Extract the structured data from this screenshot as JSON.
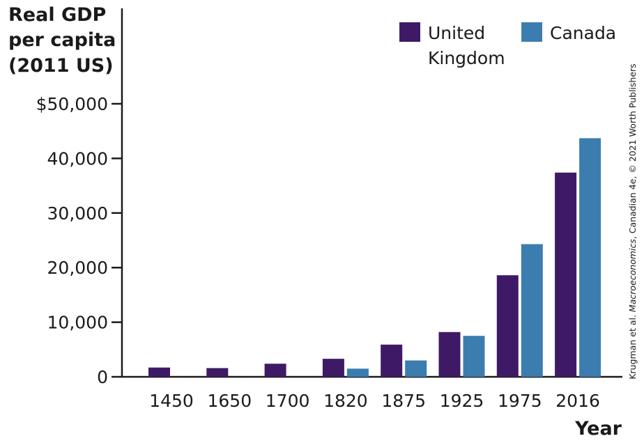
{
  "chart_data": {
    "type": "bar",
    "ylabel": [
      "Real GDP",
      "per capita",
      "(2011 US)"
    ],
    "xlabel": "Year",
    "categories": [
      "1450",
      "1650",
      "1700",
      "1820",
      "1875",
      "1925",
      "1975",
      "2016"
    ],
    "series": [
      {
        "name": "United Kingdom",
        "legend_lines": [
          "United",
          "Kingdom"
        ],
        "color": "#3e1a66",
        "values": [
          1700,
          1600,
          2400,
          3300,
          5900,
          8200,
          18600,
          37400
        ]
      },
      {
        "name": "Canada",
        "legend_lines": [
          "Canada"
        ],
        "color": "#3c7db0",
        "values": [
          null,
          null,
          null,
          1500,
          3000,
          7500,
          24300,
          43700
        ]
      }
    ],
    "ylim": [
      0,
      50000
    ],
    "yticks": [
      0,
      10000,
      20000,
      30000,
      40000,
      50000
    ],
    "ytick_labels": [
      "0",
      "10,000",
      "20,000",
      "30,000",
      "40,000",
      "$50,000"
    ],
    "legend_position": "top-right",
    "grid": false
  },
  "credit": {
    "prefix": "Krugman et al. ",
    "title": "Macroeconomics",
    "suffix": ", Canadian 4e, © 2021 Worth Publishers"
  }
}
